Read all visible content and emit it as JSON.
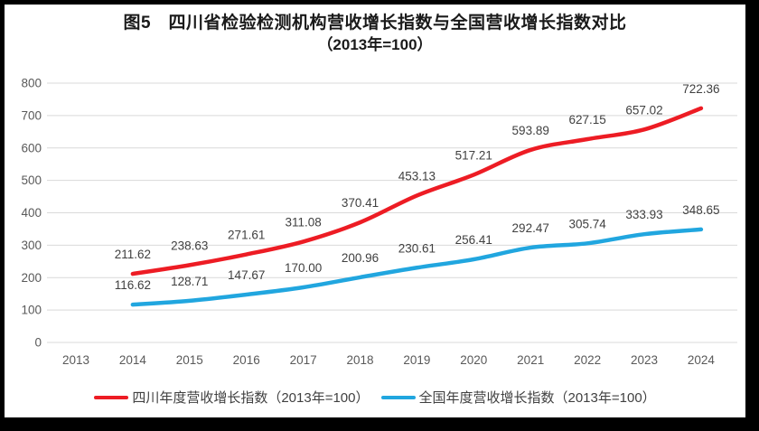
{
  "title": {
    "line1": "图5　四川省检验检测机构营收增长指数与全国营收增长指数对比",
    "line2": "（2013年=100）"
  },
  "chart_data": {
    "type": "line",
    "categories": [
      "2013",
      "2014",
      "2015",
      "2016",
      "2017",
      "2018",
      "2019",
      "2020",
      "2021",
      "2022",
      "2023",
      "2024"
    ],
    "series": [
      {
        "name": "四川年度营收增长指数（2013年=100）",
        "color": "#ed1c24",
        "start_category": "2014",
        "values": [
          211.62,
          238.63,
          271.61,
          311.08,
          370.41,
          453.13,
          517.21,
          593.89,
          627.15,
          657.02,
          722.36
        ]
      },
      {
        "name": "全国年度营收增长指数（2013年=100）",
        "color": "#21a6df",
        "start_category": "2014",
        "values": [
          116.62,
          128.71,
          147.67,
          170.0,
          200.96,
          230.61,
          256.41,
          292.47,
          305.74,
          333.93,
          348.65
        ]
      }
    ],
    "ylim": [
      0,
      800
    ],
    "yticks": [
      0,
      100,
      200,
      300,
      400,
      500,
      600,
      700,
      800
    ],
    "grid": true,
    "data_labels": true,
    "legend_position": "bottom"
  },
  "colors": {
    "frame": "#000000",
    "background": "#ffffff",
    "grid": "#d9d9d9",
    "axis_text": "#595959",
    "data_label_text": "#404040",
    "legend_text": "#404040"
  }
}
